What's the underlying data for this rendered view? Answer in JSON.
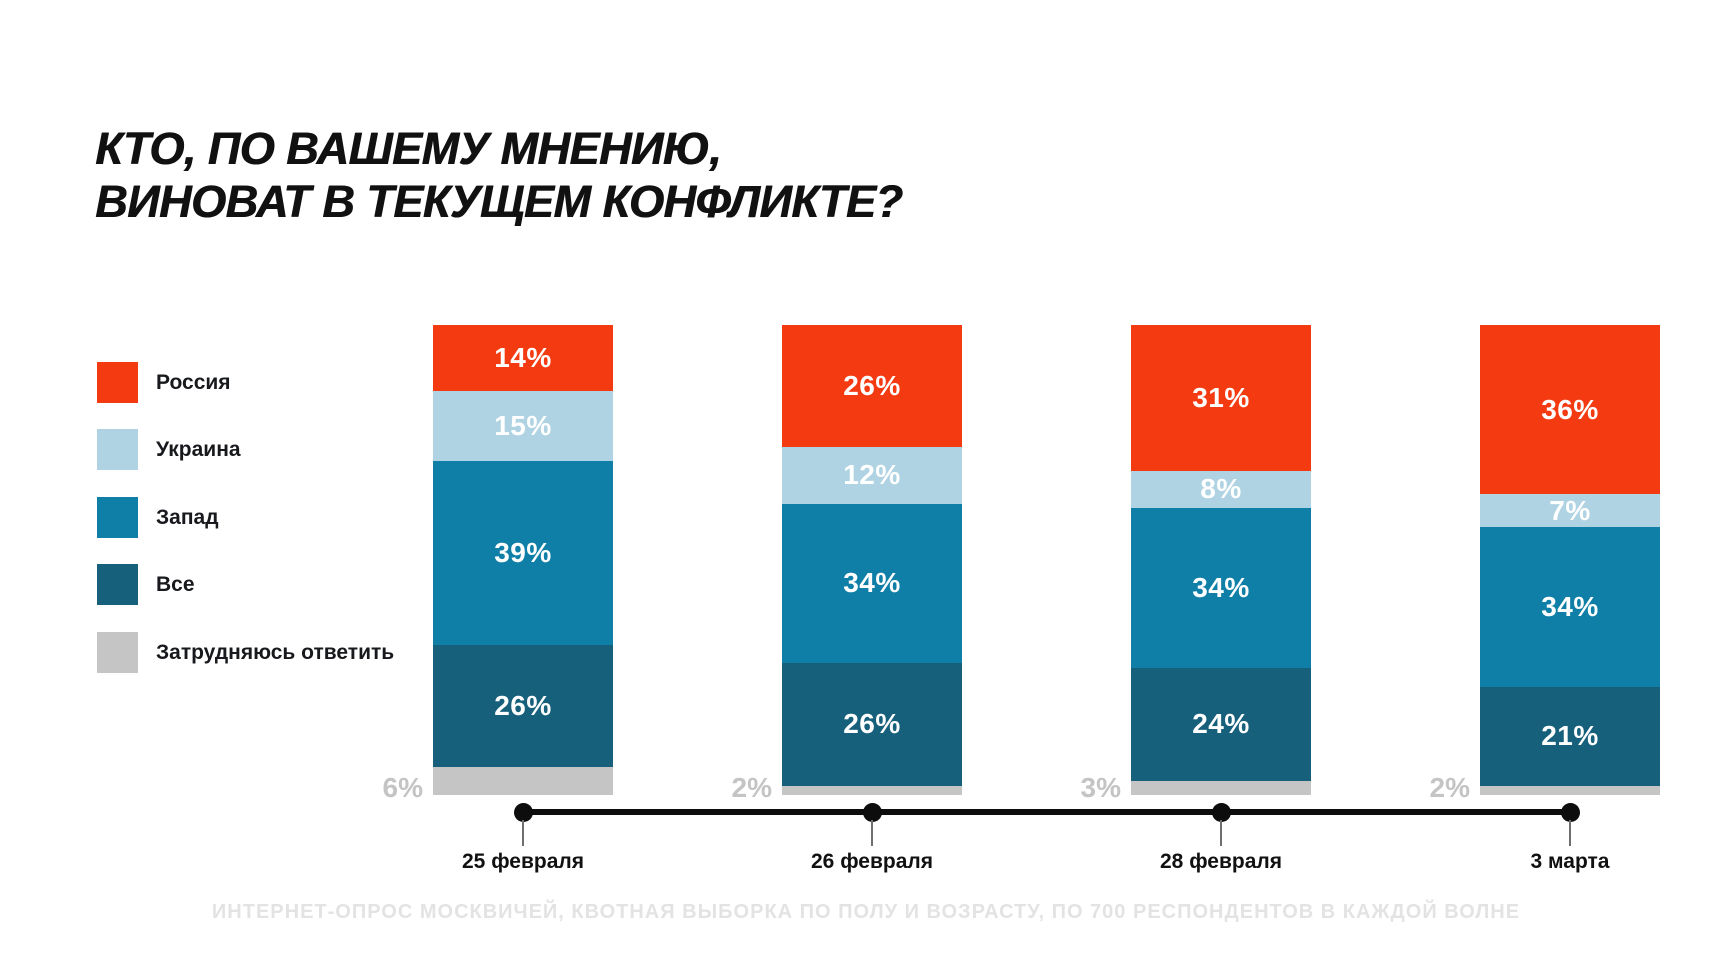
{
  "title": {
    "line1": "КТО, ПО ВАШЕМУ МНЕНИЮ,",
    "line2": "ВИНОВАТ В ТЕКУЩЕМ КОНФЛИКТЕ?"
  },
  "footer": "ИНТЕРНЕТ-ОПРОС МОСКВИЧЕЙ, КВОТНАЯ ВЫБОРКА ПО ПОЛУ И ВОЗРАСТУ, ПО 700 РЕСПОНДЕНТОВ В КАЖДОЙ ВОЛНЕ",
  "colors": {
    "background": "#FFFFFF",
    "title_text": "#111111",
    "axis": "#0D0D0D",
    "value_label": "#FFFFFF",
    "muted_label": "#C4C4C4",
    "footer_text": "#E3E3E3"
  },
  "chart_data": {
    "type": "bar",
    "stacked": true,
    "percent_scale": true,
    "ylim": [
      0,
      100
    ],
    "title": "КТО, ПО ВАШЕМУ МНЕНИЮ, ВИНОВАТ В ТЕКУЩЕМ КОНФЛИКТЕ?",
    "legend_position": "left",
    "axis_style": "timeline-with-dots",
    "categories": [
      "25 февраля",
      "26 февраля",
      "28 февраля",
      "3 марта"
    ],
    "series": [
      {
        "key": "russia",
        "name": "Россия",
        "color": "#F43A10",
        "values": [
          14,
          26,
          31,
          36
        ],
        "label_placement": "inside"
      },
      {
        "key": "ukraine",
        "name": "Украина",
        "color": "#AFD3E2",
        "values": [
          15,
          12,
          8,
          7
        ],
        "label_placement": "inside"
      },
      {
        "key": "west",
        "name": "Запад",
        "color": "#0F7FA7",
        "values": [
          39,
          34,
          34,
          34
        ],
        "label_placement": "inside"
      },
      {
        "key": "all",
        "name": "Все",
        "color": "#17607C",
        "values": [
          26,
          26,
          24,
          21
        ],
        "label_placement": "inside"
      },
      {
        "key": "undecided",
        "name": "Затрудняюсь ответить",
        "color": "#C5C5C5",
        "values": [
          6,
          2,
          3,
          2
        ],
        "label_placement": "outside-left"
      }
    ]
  }
}
